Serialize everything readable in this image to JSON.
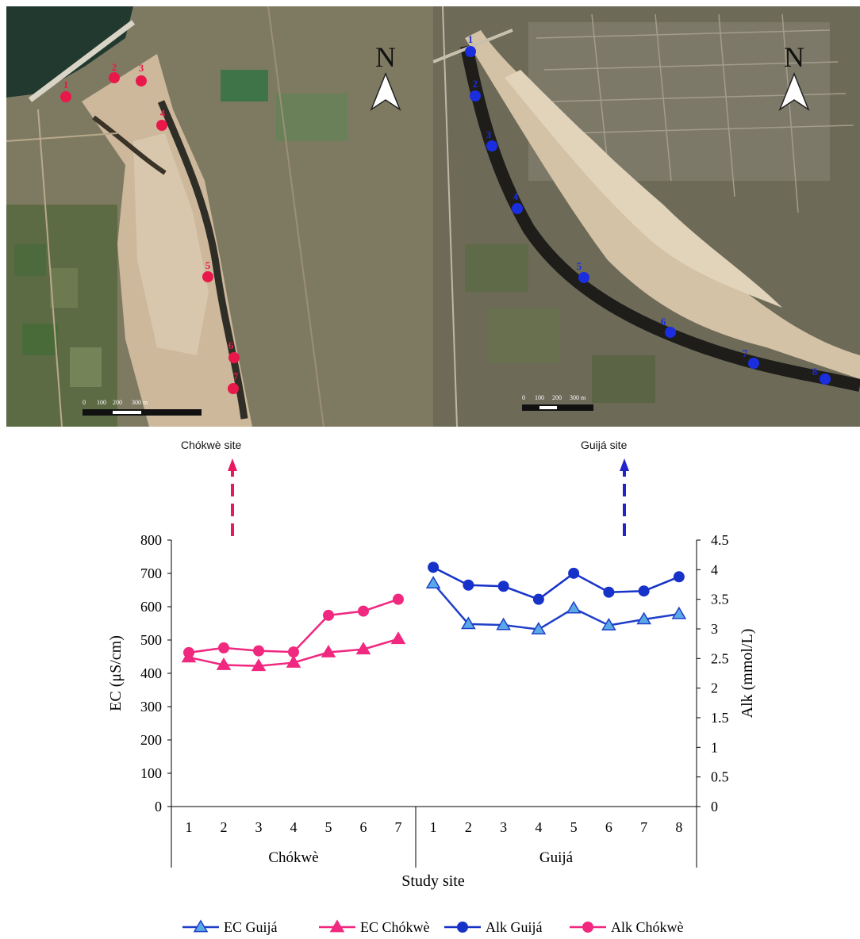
{
  "maps": {
    "left": {
      "north_label": "N",
      "scale_ticks": [
        "0",
        "100",
        "200",
        "300 m"
      ],
      "points": [
        "1",
        "2",
        "3",
        "4",
        "5",
        "6",
        "7"
      ],
      "point_color": "#e8194a"
    },
    "right": {
      "north_label": "N",
      "scale_ticks": [
        "0",
        "100",
        "200",
        "300 m"
      ],
      "points": [
        "1",
        "2",
        "3",
        "4",
        "5",
        "6",
        "7",
        "8"
      ],
      "point_color": "#1a2ee0"
    }
  },
  "site_labels": {
    "chokwe": "Chókwè site",
    "guija": "Guijá site",
    "chokwe_arrow_color": "#e8195f",
    "guija_arrow_color": "#2323c8"
  },
  "chart_data": {
    "type": "line",
    "xlabel": "Study site",
    "ylabel_left": "EC (μS/cm)",
    "ylabel_right": "Alk (mmol/L)",
    "ylim_left": [
      0,
      800
    ],
    "ylim_right": [
      0,
      4.5
    ],
    "yticks_left": [
      "0",
      "100",
      "200",
      "300",
      "400",
      "500",
      "600",
      "700",
      "800"
    ],
    "yticks_right": [
      "0",
      "0.5",
      "1",
      "1.5",
      "2",
      "2.5",
      "3",
      "3.5",
      "4",
      "4.5"
    ],
    "groups": [
      {
        "name": "Chókwè",
        "categories": [
          "1",
          "2",
          "3",
          "4",
          "5",
          "6",
          "7"
        ]
      },
      {
        "name": "Guijá",
        "categories": [
          "1",
          "2",
          "3",
          "4",
          "5",
          "6",
          "7",
          "8"
        ]
      }
    ],
    "series": [
      {
        "name": "EC Guijá",
        "group": "Guijá",
        "axis": "left",
        "marker": "triangle",
        "color": "#1f3fc9",
        "values": [
          670,
          548,
          545,
          532,
          595,
          544,
          562,
          578
        ]
      },
      {
        "name": "EC Chókwè",
        "group": "Chókwè",
        "axis": "left",
        "marker": "triangle",
        "color": "#f0287f",
        "values": [
          448,
          425,
          422,
          432,
          463,
          472,
          503
        ]
      },
      {
        "name": "Alk Guijá",
        "group": "Guijá",
        "axis": "right",
        "marker": "circle",
        "color": "#1732c8",
        "values": [
          4.04,
          3.74,
          3.72,
          3.5,
          3.94,
          3.62,
          3.64,
          3.88
        ]
      },
      {
        "name": "Alk Chókwè",
        "group": "Chókwè",
        "axis": "right",
        "marker": "circle",
        "color": "#f0287f",
        "values": [
          2.6,
          2.68,
          2.63,
          2.61,
          3.23,
          3.3,
          3.5
        ]
      }
    ],
    "legend_position": "bottom"
  }
}
